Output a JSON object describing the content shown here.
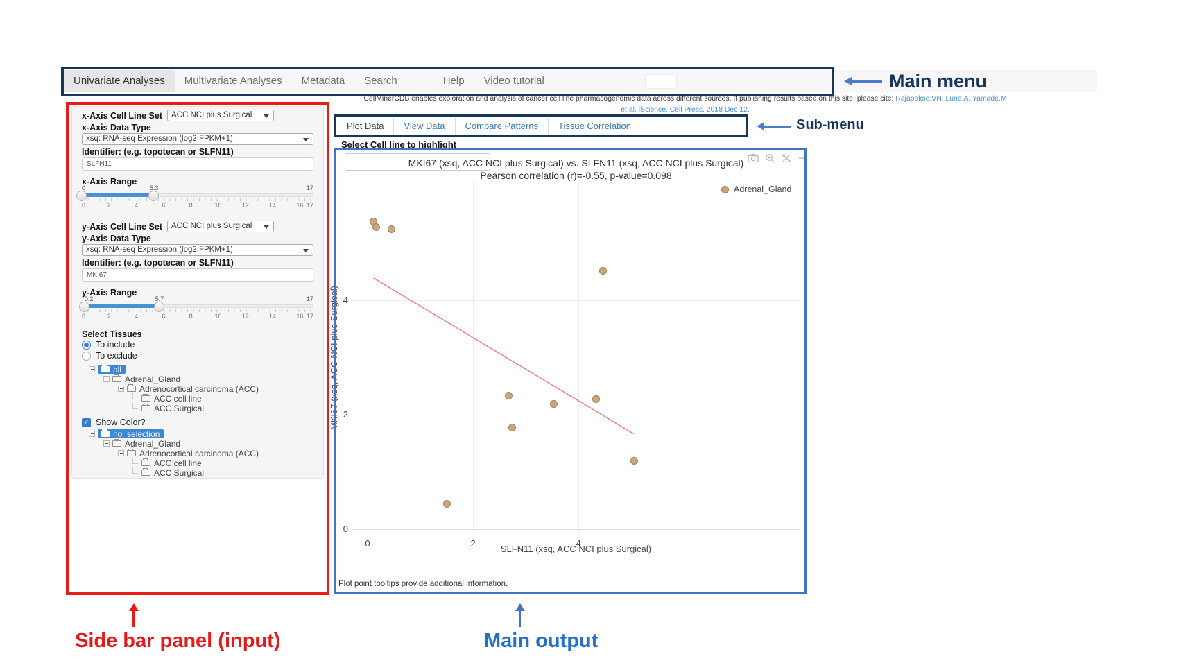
{
  "colors": {
    "annotation_navy": "#17365d",
    "annotation_red": "#e81b17",
    "annotation_blue": "#4472c4",
    "link_blue": "#337ab7",
    "point_fill": "#c9a376",
    "trend_red": "#f4777f",
    "slider_blue": "#4a90d9"
  },
  "menu": {
    "items": [
      {
        "label": "Univariate Analyses",
        "active": true
      },
      {
        "label": "Multivariate Analyses"
      },
      {
        "label": "Metadata"
      },
      {
        "label": "Search"
      },
      {
        "label": "Help",
        "gap": true
      },
      {
        "label": "Video tutorial"
      }
    ]
  },
  "annotations": {
    "main_menu": "Main menu",
    "sub_menu": "Sub-menu",
    "sidebar": "Side bar panel (input)",
    "main_output": "Main output"
  },
  "description": {
    "text": "CellMinerCDB enables exploration and analysis of cancer cell line pharmacogenomic data across different sources. If publishing results based on this site, please cite:",
    "links": "Rajapakse.VN, Luna.A, Yamade.M",
    "line2": "et al. iScience, Cell Press. 2018 Dec 12."
  },
  "submenu": {
    "tabs": [
      {
        "label": "Plot Data",
        "active": true
      },
      {
        "label": "View Data"
      },
      {
        "label": "Compare Patterns"
      },
      {
        "label": "Tissue Correlation"
      }
    ]
  },
  "highlight": {
    "label": "Select Cell line to highlight",
    "value": ""
  },
  "sidebar": {
    "x_axis": {
      "cell_line_set_label": "x-Axis Cell Line Set",
      "cell_line_set_value": "ACC NCI plus Surgical",
      "data_type_label": "x-Axis Data Type",
      "data_type_value": "xsq: RNA-seq Expression (log2 FPKM+1)",
      "identifier_label": "Identifier: (e.g. topotecan or SLFN11)",
      "identifier_value": "SLFN11",
      "range_label": "x-Axis Range",
      "range": {
        "from": 0,
        "to": 5.3,
        "min": 0,
        "max": 17,
        "from_label": "0",
        "to_label": "5.3",
        "max_label": "17",
        "ticks": [
          0,
          2,
          4,
          6,
          8,
          10,
          12,
          14,
          16,
          17
        ]
      }
    },
    "y_axis": {
      "cell_line_set_label": "y-Axis Cell Line Set",
      "cell_line_set_value": "ACC NCI plus Surgical",
      "data_type_label": "y-Axis Data Type",
      "data_type_value": "xsq: RNA-seq Expression (log2 FPKM+1)",
      "identifier_label": "Identifier: (e.g. topotecan or SLFN11)",
      "identifier_value": "MKI67",
      "range_label": "y-Axis Range",
      "range": {
        "from": 0.2,
        "to": 5.7,
        "min": 0,
        "max": 17,
        "from_label": "0.2",
        "to_label": "5.7",
        "max_label": "17",
        "ticks": [
          0,
          2,
          4,
          6,
          8,
          10,
          12,
          14,
          16,
          17
        ]
      }
    },
    "tissues": {
      "heading": "Select Tissues",
      "radios": [
        {
          "label": "To include",
          "selected": true
        },
        {
          "label": "To exclude",
          "selected": false
        }
      ],
      "include_tree": [
        {
          "level": 0,
          "toggle": true,
          "chip": true,
          "label": "all"
        },
        {
          "level": 1,
          "toggle": true,
          "label": "Adrenal_Gland"
        },
        {
          "level": 2,
          "toggle": true,
          "label": "Adrenocortical carcinoma (ACC)"
        },
        {
          "level": 3,
          "toggle": false,
          "label": "ACC cell line"
        },
        {
          "level": 3,
          "toggle": false,
          "label": "ACC Surgical"
        }
      ],
      "show_color": {
        "label": "Show Color?",
        "checked": true
      },
      "color_tree": [
        {
          "level": 0,
          "toggle": true,
          "chip": true,
          "label": "no_selection"
        },
        {
          "level": 1,
          "toggle": true,
          "label": "Adrenal_Gland"
        },
        {
          "level": 2,
          "toggle": true,
          "label": "Adrenocortical carcinoma (ACC)"
        },
        {
          "level": 3,
          "toggle": false,
          "label": "ACC cell line"
        },
        {
          "level": 3,
          "toggle": false,
          "label": "ACC Surgical"
        }
      ]
    }
  },
  "chart_data": {
    "type": "scatter",
    "title": "MKI67 (xsq, ACC NCI plus Surgical) vs. SLFN11 (xsq, ACC NCI plus Surgical)",
    "subtitle": "Pearson correlation (r)=-0.55, p-value=0.098",
    "xlabel": "SLFN11 (xsq, ACC NCI plus Surgical)",
    "ylabel": "MKI67 (xsq, ACC NCI plus Surgical)",
    "series": [
      {
        "name": "Adrenal_Gland",
        "color": "#c9a376",
        "points": [
          [
            0.11,
            5.38
          ],
          [
            0.17,
            5.28
          ],
          [
            0.45,
            5.24
          ],
          [
            4.46,
            4.52
          ],
          [
            2.67,
            2.34
          ],
          [
            3.53,
            2.19
          ],
          [
            4.33,
            2.28
          ],
          [
            2.74,
            1.78
          ],
          [
            5.05,
            1.2
          ],
          [
            1.5,
            0.45
          ]
        ]
      }
    ],
    "trend": {
      "x1": 0.11,
      "y1": 4.39,
      "x2": 5.04,
      "y2": 1.67,
      "color": "#f4777f"
    },
    "xticks": [
      0,
      2,
      4
    ],
    "yticks": [
      0,
      2,
      4
    ],
    "xlim": [
      -0.29,
      8.19
    ],
    "ylim": [
      -0.07,
      6.06
    ],
    "grid": true,
    "legend_position": "top-right-inside"
  },
  "plot": {
    "caption": "Plot point tooltips provide additional information."
  },
  "modebar_icons": [
    "camera-icon",
    "zoom-in-icon",
    "autoscale-icon",
    "reset-axes-icon"
  ]
}
